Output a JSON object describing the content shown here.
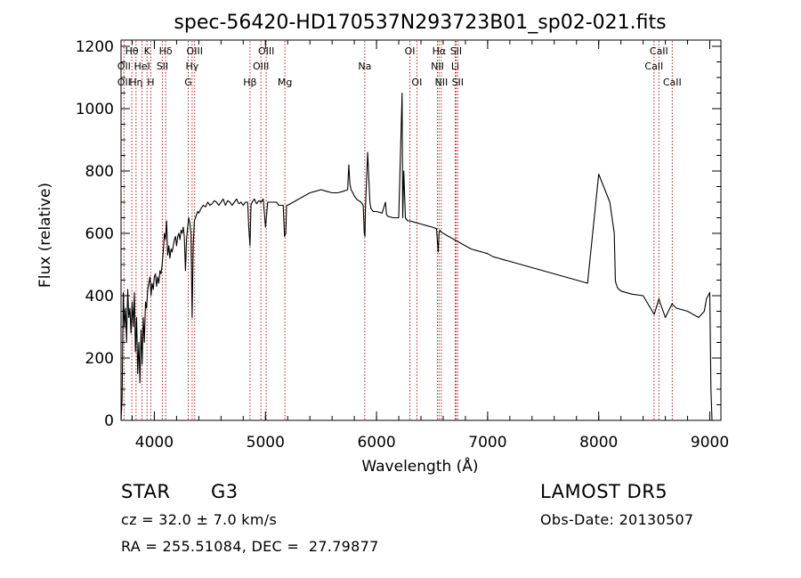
{
  "chart_data": {
    "type": "line",
    "title": "spec-56420-HD170537N293723B01_sp02-021.fits",
    "xlabel": "Wavelength (Å)",
    "ylabel": "Flux (relative)",
    "xlim": [
      3700,
      9100
    ],
    "ylim": [
      0,
      1220
    ],
    "x_ticks": [
      4000,
      5000,
      6000,
      7000,
      8000,
      9000
    ],
    "y_ticks": [
      0,
      200,
      400,
      600,
      800,
      1000,
      1200
    ],
    "grid": false,
    "line_color": "#000000",
    "marker_color": "#b22222",
    "spectrum": {
      "name": "",
      "x": [
        3700,
        3710,
        3720,
        3730,
        3740,
        3750,
        3760,
        3770,
        3780,
        3790,
        3800,
        3810,
        3820,
        3830,
        3840,
        3850,
        3860,
        3870,
        3880,
        3890,
        3900,
        3910,
        3920,
        3930,
        3940,
        3950,
        3960,
        3970,
        3980,
        3990,
        4000,
        4010,
        4020,
        4030,
        4040,
        4050,
        4060,
        4070,
        4080,
        4090,
        4100,
        4110,
        4120,
        4130,
        4140,
        4150,
        4160,
        4170,
        4180,
        4190,
        4200,
        4210,
        4220,
        4230,
        4240,
        4250,
        4260,
        4270,
        4280,
        4290,
        4300,
        4310,
        4320,
        4330,
        4340,
        4350,
        4360,
        4370,
        4380,
        4390,
        4400,
        4420,
        4440,
        4460,
        4480,
        4500,
        4520,
        4540,
        4560,
        4580,
        4600,
        4620,
        4640,
        4660,
        4680,
        4700,
        4720,
        4740,
        4760,
        4780,
        4800,
        4820,
        4840,
        4850,
        4861,
        4870,
        4880,
        4900,
        4920,
        4940,
        4960,
        4980,
        5000,
        5020,
        5040,
        5060,
        5080,
        5100,
        5120,
        5140,
        5160,
        5172,
        5183,
        5190,
        5200,
        5250,
        5300,
        5350,
        5400,
        5450,
        5500,
        5550,
        5600,
        5650,
        5700,
        5740,
        5750,
        5760,
        5770,
        5780,
        5800,
        5820,
        5840,
        5860,
        5880,
        5890,
        5896,
        5900,
        5920,
        5940,
        5945,
        5950,
        5970,
        6000,
        6050,
        6080,
        6090,
        6100,
        6150,
        6200,
        6230,
        6236,
        6245,
        6260,
        6280,
        6300,
        6350,
        6400,
        6450,
        6500,
        6540,
        6555,
        6563,
        6570,
        6580,
        6600,
        6650,
        6700,
        6750,
        6800,
        6850,
        6900,
        6950,
        7000,
        7050,
        7100,
        7150,
        7200,
        7300,
        7400,
        7500,
        7600,
        7700,
        7800,
        7900,
        8000,
        8100,
        8140,
        8150,
        8155,
        8160,
        8170,
        8200,
        8300,
        8400,
        8500,
        8542,
        8550,
        8600,
        8662,
        8670,
        8700,
        8800,
        8900,
        8950,
        8970,
        9000,
        9010,
        9020,
        9025
      ],
      "y": [
        0,
        70,
        410,
        300,
        360,
        250,
        420,
        330,
        360,
        280,
        380,
        300,
        410,
        220,
        330,
        150,
        250,
        120,
        290,
        180,
        330,
        250,
        380,
        360,
        420,
        440,
        460,
        400,
        440,
        420,
        460,
        470,
        430,
        460,
        440,
        480,
        470,
        500,
        540,
        600,
        580,
        640,
        530,
        560,
        520,
        550,
        540,
        560,
        580,
        590,
        560,
        590,
        600,
        580,
        610,
        600,
        620,
        590,
        480,
        580,
        620,
        650,
        630,
        600,
        330,
        560,
        640,
        650,
        660,
        670,
        665,
        680,
        690,
        685,
        700,
        690,
        695,
        705,
        700,
        690,
        700,
        710,
        690,
        705,
        700,
        690,
        700,
        710,
        695,
        700,
        690,
        700,
        700,
        620,
        560,
        690,
        700,
        710,
        695,
        705,
        700,
        710,
        620,
        700,
        700,
        700,
        700,
        700,
        690,
        690,
        690,
        590,
        600,
        690,
        690,
        700,
        710,
        720,
        730,
        735,
        740,
        735,
        730,
        730,
        735,
        740,
        820,
        760,
        740,
        735,
        720,
        710,
        705,
        700,
        690,
        600,
        590,
        680,
        860,
        700,
        690,
        680,
        670,
        670,
        665,
        700,
        660,
        655,
        650,
        650,
        1050,
        650,
        800,
        650,
        640,
        640,
        635,
        630,
        625,
        620,
        615,
        540,
        600,
        610,
        605,
        600,
        590,
        580,
        570,
        560,
        550,
        545,
        540,
        535,
        525,
        520,
        515,
        510,
        500,
        490,
        480,
        470,
        460,
        450,
        440,
        790,
        700,
        600,
        450,
        440,
        435,
        425,
        415,
        405,
        400,
        340,
        390,
        380,
        330,
        375,
        370,
        360,
        350,
        330,
        350,
        390,
        410,
        100,
        0,
        0
      ]
    },
    "line_ids": [
      {
        "label": "Hθ",
        "x": 3797,
        "row": 0
      },
      {
        "label": "OII",
        "x": 3727,
        "row": 1
      },
      {
        "label": "OII",
        "x": 3727,
        "row": 2
      },
      {
        "label": "K",
        "x": 3934,
        "row": 0
      },
      {
        "label": "HeI",
        "x": 3889,
        "row": 1
      },
      {
        "label": "Hη",
        "x": 3835,
        "row": 2
      },
      {
        "label": "Hδ",
        "x": 4102,
        "row": 0
      },
      {
        "label": "SII",
        "x": 4072,
        "row": 1
      },
      {
        "label": "H",
        "x": 3968,
        "row": 2
      },
      {
        "label": "OIII",
        "x": 4363,
        "row": 0
      },
      {
        "label": "Hγ",
        "x": 4340,
        "row": 1
      },
      {
        "label": "G",
        "x": 4305,
        "row": 2
      },
      {
        "label": "OIII",
        "x": 5007,
        "row": 0
      },
      {
        "label": "OIII",
        "x": 4959,
        "row": 1
      },
      {
        "label": "Hβ",
        "x": 4861,
        "row": 2
      },
      {
        "label": "Mg",
        "x": 5175,
        "row": 2
      },
      {
        "label": "Na",
        "x": 5894,
        "row": 1
      },
      {
        "label": "OI",
        "x": 6300,
        "row": 0
      },
      {
        "label": "OI",
        "x": 6363,
        "row": 2
      },
      {
        "label": "Hα",
        "x": 6563,
        "row": 0
      },
      {
        "label": "NII",
        "x": 6548,
        "row": 1
      },
      {
        "label": "NII",
        "x": 6583,
        "row": 2
      },
      {
        "label": "SII",
        "x": 6716,
        "row": 0
      },
      {
        "label": "Li",
        "x": 6708,
        "row": 1
      },
      {
        "label": "SII",
        "x": 6731,
        "row": 2
      },
      {
        "label": "CaII",
        "x": 8542,
        "row": 0
      },
      {
        "label": "CaII",
        "x": 8498,
        "row": 1
      },
      {
        "label": "CaII",
        "x": 8662,
        "row": 2
      }
    ]
  },
  "info": {
    "object_class": "STAR",
    "subclass": "G3",
    "redshift": "cz = 32.0 ± 7.0 km/s",
    "coords": "RA = 255.51084, DEC =  27.79877",
    "survey": "LAMOST DR5",
    "obs_date": "Obs-Date: 20130507"
  }
}
